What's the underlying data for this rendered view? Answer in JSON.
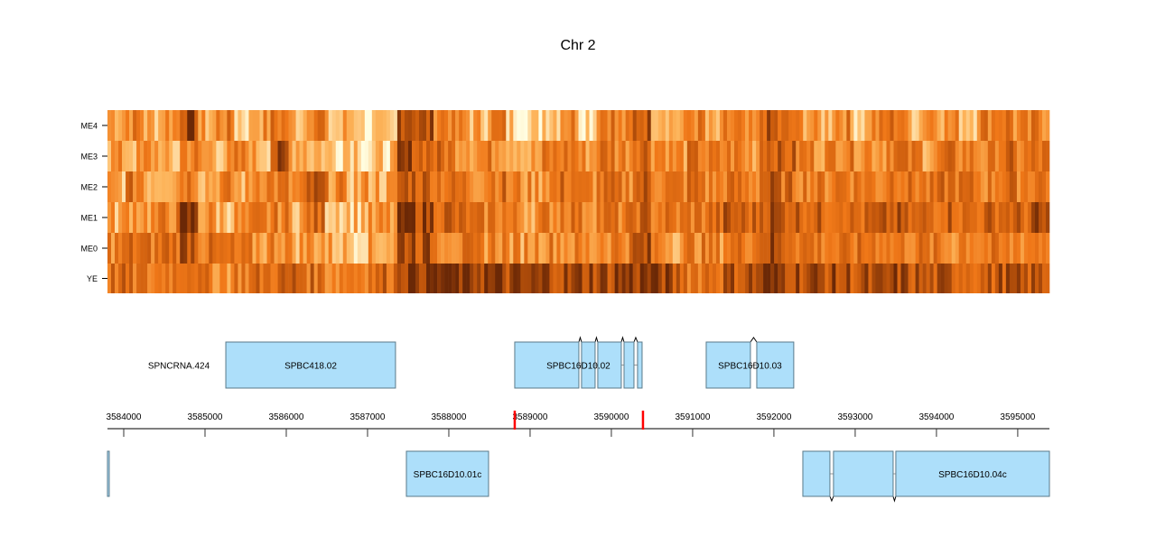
{
  "chart_data": [
    {
      "type": "heatmap",
      "title": "Chr 2",
      "rows": [
        "ME4",
        "ME3",
        "ME2",
        "ME1",
        "ME0",
        "YE"
      ],
      "xlim": [
        3583800,
        3595390
      ],
      "color_scale": [
        "#FFFDE0",
        "#FDB45A",
        "#F07818",
        "#C85A0C",
        "#6B2806"
      ],
      "values": [
        [
          0.4,
          0.5,
          0.3,
          0.45,
          0.85,
          0.3,
          0.5,
          0.2,
          0.4,
          0.55,
          0.3,
          0.6,
          0.2,
          0.3,
          0.1,
          0.05,
          0.9,
          0.75,
          0.55,
          0.4,
          0.3,
          0.5,
          0.2,
          0.1,
          0.3,
          0.5,
          0.2,
          0.6,
          0.4,
          0.75,
          0.4,
          0.3,
          0.5,
          0.2,
          0.45,
          0.3,
          0.7,
          0.55,
          0.4,
          0.3,
          0.5,
          0.25,
          0.45,
          0.6,
          0.3,
          0.5,
          0.4,
          0.3,
          0.55,
          0.6,
          0.4,
          0.5
        ],
        [
          0.35,
          0.3,
          0.4,
          0.2,
          0.5,
          0.35,
          0.3,
          0.45,
          0.3,
          0.75,
          0.4,
          0.3,
          0.2,
          0.3,
          0.1,
          0.2,
          0.8,
          0.7,
          0.6,
          0.5,
          0.45,
          0.5,
          0.4,
          0.3,
          0.5,
          0.55,
          0.4,
          0.6,
          0.5,
          0.7,
          0.5,
          0.4,
          0.55,
          0.45,
          0.5,
          0.4,
          0.75,
          0.65,
          0.5,
          0.45,
          0.55,
          0.5,
          0.45,
          0.6,
          0.5,
          0.4,
          0.55,
          0.5,
          0.45,
          0.6,
          0.5,
          0.55
        ],
        [
          0.3,
          0.55,
          0.35,
          0.4,
          0.6,
          0.35,
          0.45,
          0.3,
          0.55,
          0.5,
          0.4,
          0.7,
          0.45,
          0.3,
          0.35,
          0.3,
          0.75,
          0.7,
          0.6,
          0.55,
          0.5,
          0.6,
          0.45,
          0.4,
          0.5,
          0.6,
          0.45,
          0.55,
          0.5,
          0.7,
          0.55,
          0.5,
          0.6,
          0.45,
          0.55,
          0.5,
          0.7,
          0.6,
          0.55,
          0.5,
          0.6,
          0.55,
          0.5,
          0.65,
          0.55,
          0.5,
          0.6,
          0.55,
          0.5,
          0.6,
          0.55,
          0.6
        ],
        [
          0.3,
          0.45,
          0.4,
          0.5,
          0.9,
          0.4,
          0.3,
          0.35,
          0.45,
          0.5,
          0.35,
          0.6,
          0.3,
          0.25,
          0.3,
          0.35,
          0.95,
          0.85,
          0.7,
          0.6,
          0.5,
          0.55,
          0.45,
          0.4,
          0.5,
          0.6,
          0.5,
          0.55,
          0.5,
          0.65,
          0.55,
          0.5,
          0.55,
          0.6,
          0.7,
          0.65,
          0.8,
          0.75,
          0.7,
          0.65,
          0.7,
          0.6,
          0.65,
          0.7,
          0.6,
          0.65,
          0.7,
          0.6,
          0.65,
          0.7,
          0.65,
          0.75
        ],
        [
          0.5,
          0.6,
          0.55,
          0.65,
          0.8,
          0.55,
          0.5,
          0.45,
          0.4,
          0.5,
          0.35,
          0.4,
          0.3,
          0.25,
          0.3,
          0.35,
          0.85,
          0.75,
          0.55,
          0.5,
          0.45,
          0.5,
          0.4,
          0.45,
          0.5,
          0.45,
          0.4,
          0.5,
          0.55,
          0.75,
          0.5,
          0.4,
          0.5,
          0.45,
          0.55,
          0.6,
          0.8,
          0.7,
          0.6,
          0.55,
          0.5,
          0.55,
          0.6,
          0.5,
          0.55,
          0.5,
          0.45,
          0.55,
          0.5,
          0.45,
          0.5,
          0.55
        ],
        [
          0.6,
          0.55,
          0.5,
          0.6,
          0.7,
          0.5,
          0.45,
          0.55,
          0.6,
          0.65,
          0.7,
          0.6,
          0.5,
          0.55,
          0.6,
          0.65,
          0.95,
          0.97,
          0.97,
          0.95,
          0.92,
          0.85,
          0.8,
          0.82,
          0.85,
          0.8,
          0.85,
          0.82,
          0.9,
          0.92,
          0.88,
          0.7,
          0.6,
          0.65,
          0.75,
          0.8,
          0.9,
          0.88,
          0.82,
          0.8,
          0.78,
          0.75,
          0.72,
          0.8,
          0.75,
          0.7,
          0.72,
          0.7,
          0.68,
          0.75,
          0.7,
          0.72
        ]
      ]
    },
    {
      "type": "gene_track",
      "axis_ticks": [
        3584000,
        3585000,
        3586000,
        3587000,
        3588000,
        3589000,
        3590000,
        3591000,
        3592000,
        3593000,
        3594000,
        3595000
      ],
      "markers": [
        3588811,
        3590389
      ],
      "marker_color": "#FF0000",
      "gene_fill": "#ADDFFA",
      "gene_stroke": "#5A7A8A",
      "forward_genes": [
        {
          "name": "SPNCRNA.424",
          "exons": []
        },
        {
          "name": "SPBC418.02",
          "exons": [
            [
              3585256,
              3587344
            ]
          ]
        },
        {
          "name": "SPBC16D10.02",
          "exons": [
            [
              3588811,
              3589600
            ],
            [
              3589633,
              3589800
            ],
            [
              3589833,
              3590122
            ],
            [
              3590156,
              3590278
            ],
            [
              3590322,
              3590378
            ]
          ]
        },
        {
          "name": "SPBC16D10.03",
          "exons": [
            [
              3591167,
              3591711
            ],
            [
              3591789,
              3592244
            ]
          ]
        }
      ],
      "reverse_genes": [
        {
          "name": "",
          "exons": [
            [
              3583800,
              3583822
            ]
          ]
        },
        {
          "name": "SPBC16D10.01c",
          "exons": [
            [
              3587478,
              3588489
            ]
          ]
        },
        {
          "name": "SPBC16D10.04c",
          "exons": [
            [
              3592356,
              3592689
            ],
            [
              3592733,
              3593467
            ],
            [
              3593500,
              3595390
            ]
          ]
        }
      ]
    }
  ]
}
